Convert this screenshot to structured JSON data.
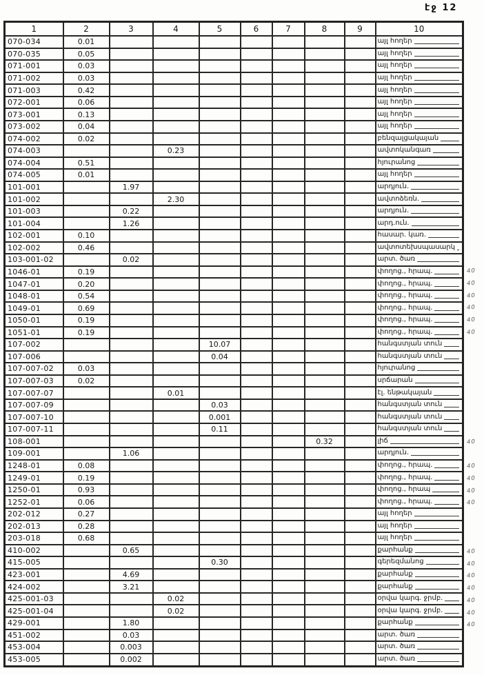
{
  "page": {
    "label": "էջ 12"
  },
  "table": {
    "columns": [
      "1",
      "2",
      "3",
      "4",
      "5",
      "6",
      "7",
      "8",
      "9",
      "10"
    ],
    "rows": [
      {
        "code": "070-034",
        "values": [
          "0.01",
          "",
          "",
          "",
          "",
          "",
          "",
          ""
        ],
        "label": "այլ հողեր",
        "note": ""
      },
      {
        "code": "070-035",
        "values": [
          "0.05",
          "",
          "",
          "",
          "",
          "",
          "",
          ""
        ],
        "label": "այլ հողեր",
        "note": ""
      },
      {
        "code": "071-001",
        "values": [
          "0.03",
          "",
          "",
          "",
          "",
          "",
          "",
          ""
        ],
        "label": "այլ հողեր",
        "note": ""
      },
      {
        "code": "071-002",
        "values": [
          "0.03",
          "",
          "",
          "",
          "",
          "",
          "",
          ""
        ],
        "label": "այլ հողեր",
        "note": ""
      },
      {
        "code": "071-003",
        "values": [
          "0.42",
          "",
          "",
          "",
          "",
          "",
          "",
          ""
        ],
        "label": "այլ հողեր",
        "note": ""
      },
      {
        "code": "072-001",
        "values": [
          "0.06",
          "",
          "",
          "",
          "",
          "",
          "",
          ""
        ],
        "label": "այլ հողեր",
        "note": ""
      },
      {
        "code": "073-001",
        "values": [
          "0.13",
          "",
          "",
          "",
          "",
          "",
          "",
          ""
        ],
        "label": "այլ հողեր",
        "note": ""
      },
      {
        "code": "073-002",
        "values": [
          "0.04",
          "",
          "",
          "",
          "",
          "",
          "",
          ""
        ],
        "label": "այլ հողեր",
        "note": ""
      },
      {
        "code": "074-002",
        "values": [
          "0.02",
          "",
          "",
          "",
          "",
          "",
          "",
          ""
        ],
        "label": "բենզալցակայան",
        "note": ""
      },
      {
        "code": "074-003",
        "values": [
          "",
          "",
          "0.23",
          "",
          "",
          "",
          "",
          ""
        ],
        "label": "ավտոկանգառ",
        "note": ""
      },
      {
        "code": "074-004",
        "values": [
          "0.51",
          "",
          "",
          "",
          "",
          "",
          "",
          ""
        ],
        "label": "հյուրանոց",
        "note": ""
      },
      {
        "code": "074-005",
        "values": [
          "0.01",
          "",
          "",
          "",
          "",
          "",
          "",
          ""
        ],
        "label": "այլ հողեր",
        "note": ""
      },
      {
        "code": "101-001",
        "values": [
          "",
          "1.97",
          "",
          "",
          "",
          "",
          "",
          ""
        ],
        "label": "արդյուն.",
        "note": ""
      },
      {
        "code": "101-002",
        "values": [
          "",
          "",
          "2.30",
          "",
          "",
          "",
          "",
          ""
        ],
        "label": "ավտոձեռն.",
        "note": ""
      },
      {
        "code": "101-003",
        "values": [
          "",
          "0.22",
          "",
          "",
          "",
          "",
          "",
          ""
        ],
        "label": "արդյուն.",
        "note": ""
      },
      {
        "code": "101-004",
        "values": [
          "",
          "1.26",
          "",
          "",
          "",
          "",
          "",
          ""
        ],
        "label": "արդ.ուն.",
        "note": ""
      },
      {
        "code": "102-001",
        "values": [
          "0.10",
          "",
          "",
          "",
          "",
          "",
          "",
          ""
        ],
        "label": "հասար. կառ.",
        "note": ""
      },
      {
        "code": "102-002",
        "values": [
          "0.46",
          "",
          "",
          "",
          "",
          "",
          "",
          ""
        ],
        "label": "ավտոտեխսպասարկում",
        "note": ""
      },
      {
        "code": "103-001-02",
        "values": [
          "",
          "0.02",
          "",
          "",
          "",
          "",
          "",
          ""
        ],
        "label": "արտ. ծառ",
        "note": ""
      },
      {
        "code": "1046-01",
        "values": [
          "0.19",
          "",
          "",
          "",
          "",
          "",
          "",
          ""
        ],
        "label": "փողոց., հրապ.",
        "note": "40"
      },
      {
        "code": "1047-01",
        "values": [
          "0.20",
          "",
          "",
          "",
          "",
          "",
          "",
          ""
        ],
        "label": "փողոց., հրապ.",
        "note": "40"
      },
      {
        "code": "1048-01",
        "values": [
          "0.54",
          "",
          "",
          "",
          "",
          "",
          "",
          ""
        ],
        "label": "փողոց., հրապ.",
        "note": "40"
      },
      {
        "code": "1049-01",
        "values": [
          "0.69",
          "",
          "",
          "",
          "",
          "",
          "",
          ""
        ],
        "label": "փողոց., հրապ.",
        "note": "40"
      },
      {
        "code": "1050-01",
        "values": [
          "0.19",
          "",
          "",
          "",
          "",
          "",
          "",
          ""
        ],
        "label": "փողոց., հրապ.",
        "note": "40"
      },
      {
        "code": "1051-01",
        "values": [
          "0.19",
          "",
          "",
          "",
          "",
          "",
          "",
          ""
        ],
        "label": "փողոց., հրապ.",
        "note": "40"
      },
      {
        "code": "107-002",
        "values": [
          "",
          "",
          "",
          "10.07",
          "",
          "",
          "",
          ""
        ],
        "label": "հանգստյան տուն",
        "note": ""
      },
      {
        "code": "107-006",
        "values": [
          "",
          "",
          "",
          "0.04",
          "",
          "",
          "",
          ""
        ],
        "label": "հանգստյան տուն",
        "note": ""
      },
      {
        "code": "107-007-02",
        "values": [
          "0.03",
          "",
          "",
          "",
          "",
          "",
          "",
          ""
        ],
        "label": "հյուրանոց",
        "note": ""
      },
      {
        "code": "107-007-03",
        "values": [
          "0.02",
          "",
          "",
          "",
          "",
          "",
          "",
          ""
        ],
        "label": "սրճարան",
        "note": ""
      },
      {
        "code": "107-007-07",
        "values": [
          "",
          "",
          "0.01",
          "",
          "",
          "",
          "",
          ""
        ],
        "label": "էլ. ենթակայան",
        "note": ""
      },
      {
        "code": "107-007-09",
        "values": [
          "",
          "",
          "",
          "0.03",
          "",
          "",
          "",
          ""
        ],
        "label": "հանգստյան տուն",
        "note": ""
      },
      {
        "code": "107-007-10",
        "values": [
          "",
          "",
          "",
          "0.001",
          "",
          "",
          "",
          ""
        ],
        "label": "հանգստյան տուն",
        "note": ""
      },
      {
        "code": "107-007-11",
        "values": [
          "",
          "",
          "",
          "0.11",
          "",
          "",
          "",
          ""
        ],
        "label": "հանգստյան տուն",
        "note": ""
      },
      {
        "code": "108-001",
        "values": [
          "",
          "",
          "",
          "",
          "",
          "",
          "0.32",
          ""
        ],
        "label": "լիճ",
        "note": "40"
      },
      {
        "code": "109-001",
        "values": [
          "",
          "1.06",
          "",
          "",
          "",
          "",
          "",
          ""
        ],
        "label": "արդյուն.",
        "note": ""
      },
      {
        "code": "1248-01",
        "values": [
          "0.08",
          "",
          "",
          "",
          "",
          "",
          "",
          ""
        ],
        "label": "փողոց., հրապ.",
        "note": "40"
      },
      {
        "code": "1249-01",
        "values": [
          "0.19",
          "",
          "",
          "",
          "",
          "",
          "",
          ""
        ],
        "label": "փողոց., հրապ.",
        "note": "40"
      },
      {
        "code": "1250-01",
        "values": [
          "0.93",
          "",
          "",
          "",
          "",
          "",
          "",
          ""
        ],
        "label": "փողոց., հրապ",
        "note": "40"
      },
      {
        "code": "1252-01",
        "values": [
          "0.06",
          "",
          "",
          "",
          "",
          "",
          "",
          ""
        ],
        "label": "փողոց., հրապ.",
        "note": "40"
      },
      {
        "code": "202-012",
        "values": [
          "0.27",
          "",
          "",
          "",
          "",
          "",
          "",
          ""
        ],
        "label": "այլ հողեր",
        "note": ""
      },
      {
        "code": "202-013",
        "values": [
          "0.28",
          "",
          "",
          "",
          "",
          "",
          "",
          ""
        ],
        "label": "այլ հողեր",
        "note": ""
      },
      {
        "code": "203-018",
        "values": [
          "0.68",
          "",
          "",
          "",
          "",
          "",
          "",
          ""
        ],
        "label": "այլ հողեր",
        "note": ""
      },
      {
        "code": "410-002",
        "values": [
          "",
          "0.65",
          "",
          "",
          "",
          "",
          "",
          ""
        ],
        "label": "քարհանք",
        "note": "40"
      },
      {
        "code": "415-005",
        "values": [
          "",
          "",
          "",
          "0.30",
          "",
          "",
          "",
          ""
        ],
        "label": "գերեզմանոց",
        "note": "40"
      },
      {
        "code": "423-001",
        "values": [
          "",
          "4.69",
          "",
          "",
          "",
          "",
          "",
          ""
        ],
        "label": "քարհանք",
        "note": "40"
      },
      {
        "code": "424-002",
        "values": [
          "",
          "3.21",
          "",
          "",
          "",
          "",
          "",
          ""
        ],
        "label": "քարհանք",
        "note": "40"
      },
      {
        "code": "425-001-03",
        "values": [
          "",
          "",
          "0.02",
          "",
          "",
          "",
          "",
          ""
        ],
        "label": "օրվա կարգ. ջրմբ.",
        "note": "40"
      },
      {
        "code": "425-001-04",
        "values": [
          "",
          "",
          "0.02",
          "",
          "",
          "",
          "",
          ""
        ],
        "label": "օրվա կարգ. ջրմբ.",
        "note": "40"
      },
      {
        "code": "429-001",
        "values": [
          "",
          "1.80",
          "",
          "",
          "",
          "",
          "",
          ""
        ],
        "label": "քարհանք",
        "note": "40"
      },
      {
        "code": "451-002",
        "values": [
          "",
          "0.03",
          "",
          "",
          "",
          "",
          "",
          ""
        ],
        "label": "արտ. ծառ",
        "note": ""
      },
      {
        "code": "453-004",
        "values": [
          "",
          "0.003",
          "",
          "",
          "",
          "",
          "",
          ""
        ],
        "label": "արտ. ծառ",
        "note": ""
      },
      {
        "code": "453-005",
        "values": [
          "",
          "0.002",
          "",
          "",
          "",
          "",
          "",
          ""
        ],
        "label": "արտ. ծառ",
        "note": ""
      }
    ]
  }
}
